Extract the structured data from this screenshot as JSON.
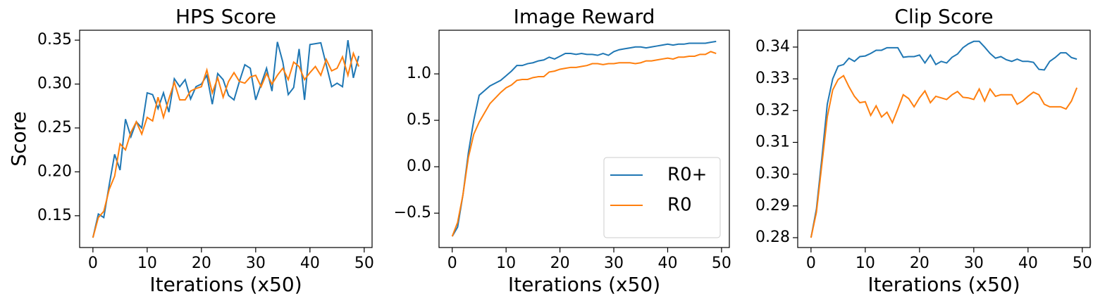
{
  "chart_data": [
    {
      "type": "line",
      "title": "HPS Score",
      "xlabel": "Iterations (x50)",
      "ylabel": "Score",
      "x": [
        0,
        1,
        2,
        3,
        4,
        5,
        6,
        7,
        8,
        9,
        10,
        11,
        12,
        13,
        14,
        15,
        16,
        17,
        18,
        19,
        20,
        21,
        22,
        23,
        24,
        25,
        26,
        27,
        28,
        29,
        30,
        31,
        32,
        33,
        34,
        35,
        36,
        37,
        38,
        39,
        40,
        41,
        42,
        43,
        44,
        45,
        46,
        47,
        48,
        49
      ],
      "series": [
        {
          "color": "#1f77b4",
          "values": [
            0.125,
            0.152,
            0.148,
            0.185,
            0.22,
            0.202,
            0.26,
            0.24,
            0.257,
            0.25,
            0.29,
            0.288,
            0.272,
            0.29,
            0.268,
            0.306,
            0.297,
            0.305,
            0.283,
            0.297,
            0.3,
            0.31,
            0.277,
            0.312,
            0.305,
            0.287,
            0.282,
            0.303,
            0.322,
            0.318,
            0.282,
            0.3,
            0.318,
            0.292,
            0.348,
            0.325,
            0.288,
            0.296,
            0.34,
            0.282,
            0.345,
            0.346,
            0.347,
            0.322,
            0.297,
            0.301,
            0.297,
            0.35,
            0.307,
            0.332
          ]
        },
        {
          "color": "#ff7f0e",
          "values": [
            0.125,
            0.148,
            0.155,
            0.18,
            0.195,
            0.232,
            0.225,
            0.245,
            0.257,
            0.243,
            0.262,
            0.258,
            0.285,
            0.262,
            0.283,
            0.302,
            0.282,
            0.282,
            0.292,
            0.295,
            0.297,
            0.316,
            0.29,
            0.307,
            0.285,
            0.303,
            0.313,
            0.303,
            0.301,
            0.308,
            0.31,
            0.297,
            0.312,
            0.3,
            0.31,
            0.318,
            0.305,
            0.325,
            0.32,
            0.305,
            0.313,
            0.32,
            0.31,
            0.328,
            0.315,
            0.318,
            0.331,
            0.31,
            0.335,
            0.32
          ]
        }
      ],
      "xlim": [
        -2.45,
        51.45
      ],
      "xticks": [
        0,
        10,
        20,
        30,
        40,
        50
      ],
      "ylim": [
        0.1138,
        0.3613
      ],
      "yticks": [
        0.15,
        {
          "value": 0.2,
          "label": "0.20"
        },
        0.25,
        {
          "value": 0.3,
          "label": "0.30"
        },
        0.35
      ]
    },
    {
      "type": "line",
      "title": "Image Reward",
      "xlabel": "Iterations (x50)",
      "legend": "lower right",
      "x": [
        0,
        1,
        2,
        3,
        4,
        5,
        6,
        7,
        8,
        9,
        10,
        11,
        12,
        13,
        14,
        15,
        16,
        17,
        18,
        19,
        20,
        21,
        22,
        23,
        24,
        25,
        26,
        27,
        28,
        29,
        30,
        31,
        32,
        33,
        34,
        35,
        36,
        37,
        38,
        39,
        40,
        41,
        42,
        43,
        44,
        45,
        46,
        47,
        48,
        49
      ],
      "series": [
        {
          "name": "R0+",
          "color": "#1f77b4",
          "values": [
            -0.75,
            -0.65,
            -0.3,
            0.15,
            0.5,
            0.77,
            0.82,
            0.87,
            0.9,
            0.93,
            0.98,
            1.03,
            1.09,
            1.09,
            1.11,
            1.12,
            1.14,
            1.15,
            1.18,
            1.16,
            1.19,
            1.22,
            1.22,
            1.21,
            1.22,
            1.21,
            1.21,
            1.2,
            1.22,
            1.2,
            1.24,
            1.26,
            1.27,
            1.28,
            1.29,
            1.29,
            1.28,
            1.29,
            1.3,
            1.31,
            1.32,
            1.31,
            1.32,
            1.32,
            1.33,
            1.33,
            1.33,
            1.33,
            1.34,
            1.35
          ]
        },
        {
          "name": "R0",
          "color": "#ff7f0e",
          "values": [
            -0.75,
            -0.6,
            -0.3,
            0.1,
            0.35,
            0.48,
            0.58,
            0.68,
            0.74,
            0.8,
            0.85,
            0.88,
            0.93,
            0.94,
            0.94,
            0.96,
            0.97,
            0.97,
            1.02,
            1.03,
            1.05,
            1.06,
            1.07,
            1.07,
            1.08,
            1.09,
            1.11,
            1.11,
            1.1,
            1.11,
            1.11,
            1.12,
            1.12,
            1.12,
            1.11,
            1.12,
            1.14,
            1.14,
            1.15,
            1.16,
            1.17,
            1.16,
            1.18,
            1.18,
            1.19,
            1.19,
            1.21,
            1.21,
            1.24,
            1.22
          ]
        }
      ],
      "xlim": [
        -2.45,
        51.45
      ],
      "xticks": [
        0,
        10,
        20,
        30,
        40,
        50
      ],
      "ylim": [
        -0.87,
        1.47
      ],
      "yticks": [
        {
          "value": -0.5,
          "label": "−0.5"
        },
        {
          "value": 0,
          "label": "0.0"
        },
        0.5,
        {
          "value": 1,
          "label": "1.0"
        }
      ]
    },
    {
      "type": "line",
      "title": "Clip Score",
      "xlabel": "Iterations (x50)",
      "x": [
        0,
        1,
        2,
        3,
        4,
        5,
        6,
        7,
        8,
        9,
        10,
        11,
        12,
        13,
        14,
        15,
        16,
        17,
        18,
        19,
        20,
        21,
        22,
        23,
        24,
        25,
        26,
        27,
        28,
        29,
        30,
        31,
        32,
        33,
        34,
        35,
        36,
        37,
        38,
        39,
        40,
        41,
        42,
        43,
        44,
        45,
        46,
        47,
        48,
        49
      ],
      "series": [
        {
          "color": "#1f77b4",
          "values": [
            0.28,
            0.289,
            0.305,
            0.322,
            0.33,
            0.334,
            0.3345,
            0.3365,
            0.3355,
            0.337,
            0.3372,
            0.338,
            0.339,
            0.339,
            0.3398,
            0.3398,
            0.3398,
            0.3368,
            0.337,
            0.337,
            0.3375,
            0.335,
            0.3375,
            0.3345,
            0.3355,
            0.335,
            0.3368,
            0.3378,
            0.3398,
            0.341,
            0.3418,
            0.3418,
            0.34,
            0.338,
            0.3365,
            0.337,
            0.336,
            0.3355,
            0.3362,
            0.3355,
            0.3355,
            0.3352,
            0.333,
            0.3328,
            0.3355,
            0.3367,
            0.3382,
            0.3382,
            0.3367,
            0.3362
          ]
        },
        {
          "color": "#ff7f0e",
          "values": [
            0.28,
            0.288,
            0.303,
            0.318,
            0.3265,
            0.3298,
            0.331,
            0.3275,
            0.3245,
            0.3225,
            0.3228,
            0.3185,
            0.3215,
            0.318,
            0.3195,
            0.3162,
            0.3205,
            0.325,
            0.3238,
            0.3212,
            0.324,
            0.3262,
            0.3225,
            0.3245,
            0.324,
            0.3235,
            0.325,
            0.326,
            0.3242,
            0.324,
            0.3235,
            0.3268,
            0.323,
            0.3268,
            0.3245,
            0.325,
            0.325,
            0.325,
            0.322,
            0.323,
            0.3245,
            0.3258,
            0.325,
            0.322,
            0.3212,
            0.3212,
            0.3212,
            0.3205,
            0.323,
            0.3272
          ]
        }
      ],
      "xlim": [
        -2.45,
        51.45
      ],
      "xticks": [
        0,
        10,
        20,
        30,
        40,
        50
      ],
      "ylim": [
        0.2769,
        0.3453
      ],
      "yticks": [
        0.28,
        0.29,
        {
          "value": 0.3,
          "label": "0.30"
        },
        0.31,
        0.32,
        0.33,
        0.34
      ]
    }
  ]
}
